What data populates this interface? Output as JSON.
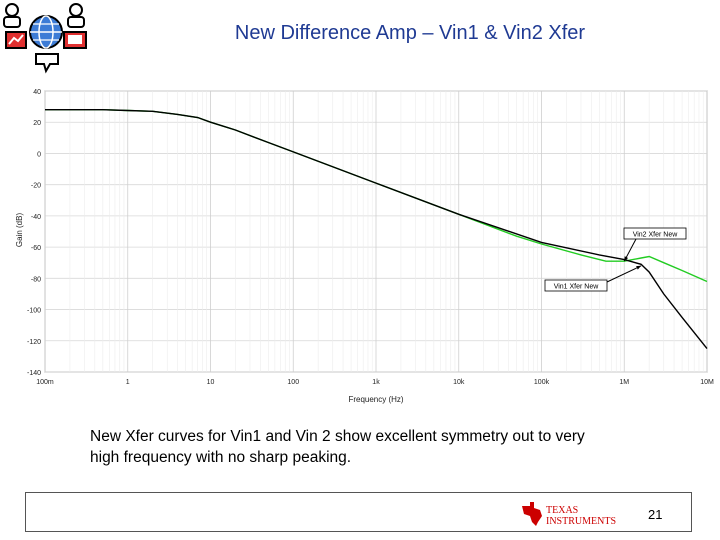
{
  "slide": {
    "title": "New Difference Amp – Vin1 & Vin2 Xfer",
    "caption_line1": "New Xfer curves for Vin1 and Vin 2 show excellent symmetry out to very",
    "caption_line2": "high frequency with no sharp peaking.",
    "page_number": "21",
    "brand": {
      "line1": "TEXAS",
      "line2": "INSTRUMENTS",
      "color": "#cc0000"
    }
  },
  "chart_data": {
    "type": "line",
    "xlabel": "Frequency (Hz)",
    "ylabel": "Gain (dB)",
    "xscale": "log",
    "xlim": [
      0.1,
      10000000
    ],
    "ylim": [
      -140,
      40
    ],
    "grid": true,
    "x_tick_labels": [
      "100m",
      "1",
      "10",
      "100",
      "1k",
      "10k",
      "100k",
      "1M",
      "10M"
    ],
    "y_tick_labels": [
      "40",
      "20",
      "0",
      "-20",
      "-40",
      "-60",
      "-80",
      "-100",
      "-120",
      "-140"
    ],
    "series": [
      {
        "name": "Vin1 Xfer New",
        "color": "#000000",
        "x": [
          0.1,
          0.5,
          1,
          2,
          4,
          7,
          10,
          20,
          50,
          100,
          1000,
          10000,
          100000,
          500000,
          1000000,
          1600000,
          2000000,
          3000000,
          5000000,
          10000000
        ],
        "y": [
          28,
          28,
          27.5,
          27,
          25,
          23,
          20,
          15,
          7,
          1,
          -19,
          -39,
          -57,
          -65,
          -68,
          -71,
          -76,
          -90,
          -105,
          -125
        ]
      },
      {
        "name": "Vin2 Xfer New",
        "color": "#22cc22",
        "x": [
          0.1,
          0.5,
          1,
          2,
          4,
          7,
          10,
          20,
          50,
          100,
          1000,
          10000,
          50000,
          100000,
          300000,
          600000,
          1000000,
          1600000,
          2000000,
          3000000,
          5000000,
          10000000
        ],
        "y": [
          28,
          28,
          27.5,
          27,
          25,
          23,
          20,
          15,
          7,
          1,
          -19,
          -39,
          -53,
          -58,
          -65,
          -69,
          -69,
          -67,
          -66,
          -70,
          -75,
          -82
        ]
      }
    ],
    "annotations": [
      {
        "text": "Vin2 Xfer New",
        "target_series": "Vin2 Xfer New"
      },
      {
        "text": "Vin1 Xfer New",
        "target_series": "Vin1 Xfer New"
      }
    ]
  }
}
